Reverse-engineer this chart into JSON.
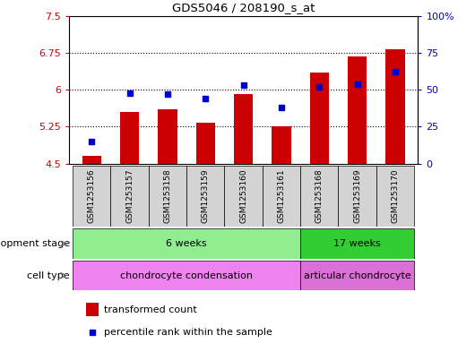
{
  "title": "GDS5046 / 208190_s_at",
  "samples": [
    "GSM1253156",
    "GSM1253157",
    "GSM1253158",
    "GSM1253159",
    "GSM1253160",
    "GSM1253161",
    "GSM1253168",
    "GSM1253169",
    "GSM1253170"
  ],
  "bar_values": [
    4.65,
    5.55,
    5.6,
    5.33,
    5.92,
    5.25,
    6.35,
    6.68,
    6.82
  ],
  "dot_values": [
    15,
    48,
    47,
    44,
    53,
    38,
    52,
    54,
    62
  ],
  "ylim_left": [
    4.5,
    7.5
  ],
  "ylim_right": [
    0,
    100
  ],
  "yticks_left": [
    4.5,
    5.25,
    6.0,
    6.75,
    7.5
  ],
  "ytick_labels_left": [
    "4.5",
    "5.25",
    "6",
    "6.75",
    "7.5"
  ],
  "yticks_right": [
    0,
    25,
    50,
    75,
    100
  ],
  "ytick_labels_right": [
    "0",
    "25",
    "50",
    "75",
    "100%"
  ],
  "hlines": [
    5.25,
    6.0,
    6.75
  ],
  "bar_color": "#cc0000",
  "dot_color": "#0000cc",
  "bar_width": 0.5,
  "dev_stage_groups": [
    {
      "label": "6 weeks",
      "start": 0,
      "end": 6,
      "color": "#90ee90"
    },
    {
      "label": "17 weeks",
      "start": 6,
      "end": 9,
      "color": "#32cd32"
    }
  ],
  "cell_type_groups": [
    {
      "label": "chondrocyte condensation",
      "start": 0,
      "end": 6,
      "color": "#ee82ee"
    },
    {
      "label": "articular chondrocyte",
      "start": 6,
      "end": 9,
      "color": "#da70d6"
    }
  ],
  "dev_stage_label": "development stage",
  "cell_type_label": "cell type",
  "legend_bar_label": "transformed count",
  "legend_dot_label": "percentile rank within the sample",
  "axis_label_color_left": "#cc0000",
  "axis_label_color_right": "#0000cc",
  "bg_color": "#ffffff",
  "plot_bg_color": "#ffffff",
  "grid_color": "#000000",
  "tick_label_bg": "#d3d3d3"
}
